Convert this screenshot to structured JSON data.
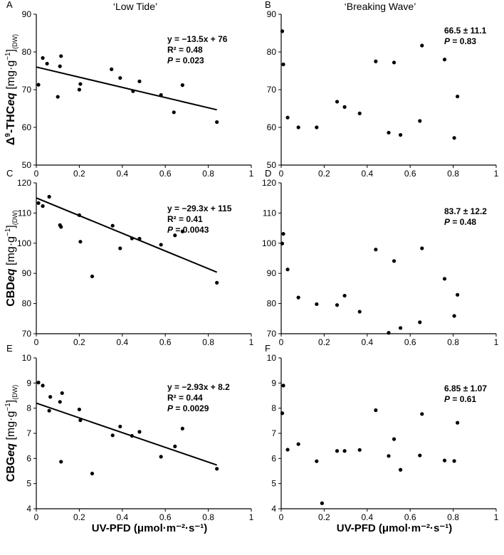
{
  "chart_data": [
    {
      "type": "scatter",
      "panel": "A",
      "column_title": "‘Low Tide’",
      "ylabel_parts": [
        "Δ",
        "9",
        "-THC",
        "eq",
        " [mg·g",
        "−1",
        "]",
        "(DW)"
      ],
      "xlabel": "",
      "xlim": [
        0,
        1
      ],
      "ylim": [
        50,
        90
      ],
      "xticks": [
        "0",
        "0.2",
        "0.4",
        "0.6",
        "0.8",
        "1"
      ],
      "yticks": [
        "50",
        "60",
        "70",
        "80",
        "90"
      ],
      "annotation": [
        {
          "kind": "plain",
          "text": "y = −13.5x + 76"
        },
        {
          "kind": "plain",
          "text": "R² = 0.48"
        },
        {
          "kind": "p",
          "label": "P",
          "value": " = 0.023"
        }
      ],
      "fit": {
        "slope": -13.5,
        "intercept": 76,
        "x_range": [
          0,
          0.84
        ]
      },
      "points": [
        [
          0.01,
          71.3
        ],
        [
          0.03,
          78.4
        ],
        [
          0.05,
          76.9
        ],
        [
          0.1,
          68.1
        ],
        [
          0.11,
          76.2
        ],
        [
          0.115,
          78.9
        ],
        [
          0.2,
          70
        ],
        [
          0.205,
          71.5
        ],
        [
          0.35,
          75.4
        ],
        [
          0.39,
          73.1
        ],
        [
          0.45,
          69.6
        ],
        [
          0.48,
          72.2
        ],
        [
          0.58,
          68.6
        ],
        [
          0.64,
          64
        ],
        [
          0.68,
          71.2
        ],
        [
          0.84,
          61.4
        ]
      ]
    },
    {
      "type": "scatter",
      "panel": "B",
      "column_title": "‘Breaking Wave’",
      "ylabel_parts": [],
      "xlabel": "",
      "xlim": [
        0,
        1
      ],
      "ylim": [
        50,
        90
      ],
      "xticks": [
        "0",
        "0.2",
        "0.4",
        "0.6",
        "0.8",
        "1"
      ],
      "yticks": [
        "50",
        "60",
        "70",
        "80",
        "90"
      ],
      "annotation": [
        {
          "kind": "plain",
          "text": "66.5 ± 11.1"
        },
        {
          "kind": "p",
          "label": "P",
          "value": " = 0.83"
        }
      ],
      "fit": null,
      "points": [
        [
          0.005,
          85.5
        ],
        [
          0.01,
          76.7
        ],
        [
          0.03,
          62.6
        ],
        [
          0.08,
          60
        ],
        [
          0.165,
          60
        ],
        [
          0.26,
          66.8
        ],
        [
          0.295,
          65.4
        ],
        [
          0.365,
          63.7
        ],
        [
          0.44,
          77.5
        ],
        [
          0.5,
          58.6
        ],
        [
          0.525,
          77.2
        ],
        [
          0.555,
          58
        ],
        [
          0.645,
          61.7
        ],
        [
          0.655,
          81.7
        ],
        [
          0.76,
          78
        ],
        [
          0.805,
          57.2
        ],
        [
          0.82,
          68.2
        ]
      ]
    },
    {
      "type": "scatter",
      "panel": "C",
      "column_title": "",
      "ylabel_parts": [
        "CBD",
        "eq",
        " [mg·g",
        "−1",
        "]",
        "(DW)"
      ],
      "xlabel": "",
      "xlim": [
        0,
        1
      ],
      "ylim": [
        70,
        120
      ],
      "xticks": [
        "0",
        "0.2",
        "0.4",
        "0.6",
        "0.8",
        "1"
      ],
      "yticks": [
        "70",
        "80",
        "90",
        "100",
        "110",
        "120"
      ],
      "annotation": [
        {
          "kind": "plain",
          "text": "y = −29.3x + 115"
        },
        {
          "kind": "plain",
          "text": "R² = 0.41"
        },
        {
          "kind": "p",
          "label": "P",
          "value": " = 0.0043"
        }
      ],
      "fit": {
        "slope": -29.3,
        "intercept": 115,
        "x_range": [
          0,
          0.84
        ]
      },
      "points": [
        [
          0.01,
          113.3
        ],
        [
          0.03,
          112.3
        ],
        [
          0.06,
          115.4
        ],
        [
          0.11,
          106
        ],
        [
          0.115,
          105.4
        ],
        [
          0.2,
          109.3
        ],
        [
          0.205,
          100.5
        ],
        [
          0.26,
          89
        ],
        [
          0.355,
          105.8
        ],
        [
          0.39,
          98.3
        ],
        [
          0.445,
          101.6
        ],
        [
          0.48,
          101.5
        ],
        [
          0.58,
          99.5
        ],
        [
          0.645,
          102.6
        ],
        [
          0.68,
          103.9
        ],
        [
          0.84,
          86.9
        ]
      ]
    },
    {
      "type": "scatter",
      "panel": "D",
      "column_title": "",
      "ylabel_parts": [],
      "xlabel": "",
      "xlim": [
        0,
        1
      ],
      "ylim": [
        70,
        120
      ],
      "xticks": [
        "0",
        "0.2",
        "0.4",
        "0.6",
        "0.8",
        "1"
      ],
      "yticks": [
        "70",
        "80",
        "90",
        "100",
        "110",
        "120"
      ],
      "annotation": [
        {
          "kind": "plain",
          "text": "83.7 ± 12.2"
        },
        {
          "kind": "p",
          "label": "P",
          "value": " = 0.48"
        }
      ],
      "fit": null,
      "points": [
        [
          0.005,
          99.9
        ],
        [
          0.01,
          103.1
        ],
        [
          0.03,
          91.3
        ],
        [
          0.08,
          82
        ],
        [
          0.165,
          79.8
        ],
        [
          0.26,
          79.5
        ],
        [
          0.295,
          82.6
        ],
        [
          0.365,
          77.3
        ],
        [
          0.44,
          97.9
        ],
        [
          0.5,
          70.3
        ],
        [
          0.525,
          94.1
        ],
        [
          0.555,
          71.9
        ],
        [
          0.645,
          73.8
        ],
        [
          0.655,
          98.3
        ],
        [
          0.76,
          88.2
        ],
        [
          0.805,
          75.9
        ],
        [
          0.82,
          82.9
        ]
      ]
    },
    {
      "type": "scatter",
      "panel": "E",
      "column_title": "",
      "ylabel_parts": [
        "CBG",
        "eq",
        " [mg·g",
        "−1",
        "]",
        "(DW)"
      ],
      "xlabel": "UV-PFD (μmol·m⁻²·s⁻¹)",
      "xlim": [
        0,
        1
      ],
      "ylim": [
        4,
        10
      ],
      "xticks": [
        "0",
        "0.2",
        "0.4",
        "0.6",
        "0.8",
        "1"
      ],
      "yticks": [
        "4",
        "5",
        "6",
        "7",
        "8",
        "9",
        "10"
      ],
      "annotation": [
        {
          "kind": "plain",
          "text": "y = −2.93x + 8.2"
        },
        {
          "kind": "plain",
          "text": "R² = 0.44"
        },
        {
          "kind": "p",
          "label": "P",
          "value": " = 0.0029"
        }
      ],
      "fit": {
        "slope": -2.93,
        "intercept": 8.2,
        "x_range": [
          0,
          0.84
        ]
      },
      "points": [
        [
          0.01,
          9.02
        ],
        [
          0.03,
          8.9
        ],
        [
          0.06,
          7.9
        ],
        [
          0.065,
          8.45
        ],
        [
          0.11,
          8.25
        ],
        [
          0.115,
          5.87
        ],
        [
          0.12,
          8.6
        ],
        [
          0.2,
          7.95
        ],
        [
          0.205,
          7.52
        ],
        [
          0.26,
          5.4
        ],
        [
          0.355,
          6.92
        ],
        [
          0.39,
          7.27
        ],
        [
          0.445,
          6.9
        ],
        [
          0.48,
          7.06
        ],
        [
          0.58,
          6.07
        ],
        [
          0.645,
          6.48
        ],
        [
          0.68,
          7.19
        ],
        [
          0.84,
          5.59
        ]
      ]
    },
    {
      "type": "scatter",
      "panel": "F",
      "column_title": "",
      "ylabel_parts": [],
      "xlabel": "UV-PFD (μmol·m⁻²·s⁻¹)",
      "xlim": [
        0,
        1
      ],
      "ylim": [
        4,
        10
      ],
      "xticks": [
        "0",
        "0.2",
        "0.4",
        "0.6",
        "0.8",
        "1"
      ],
      "yticks": [
        "4",
        "5",
        "6",
        "7",
        "8",
        "9",
        "10"
      ],
      "annotation": [
        {
          "kind": "plain",
          "text": "6.85 ± 1.07"
        },
        {
          "kind": "p",
          "label": "P",
          "value": " = 0.61"
        }
      ],
      "fit": null,
      "points": [
        [
          0.005,
          7.8
        ],
        [
          0.01,
          8.9
        ],
        [
          0.03,
          6.35
        ],
        [
          0.08,
          6.57
        ],
        [
          0.165,
          5.89
        ],
        [
          0.19,
          4.22
        ],
        [
          0.26,
          6.3
        ],
        [
          0.295,
          6.3
        ],
        [
          0.365,
          6.34
        ],
        [
          0.44,
          7.92
        ],
        [
          0.5,
          6.1
        ],
        [
          0.525,
          6.77
        ],
        [
          0.555,
          5.55
        ],
        [
          0.645,
          6.12
        ],
        [
          0.655,
          7.77
        ],
        [
          0.76,
          5.92
        ],
        [
          0.805,
          5.9
        ],
        [
          0.82,
          7.42
        ]
      ]
    }
  ]
}
